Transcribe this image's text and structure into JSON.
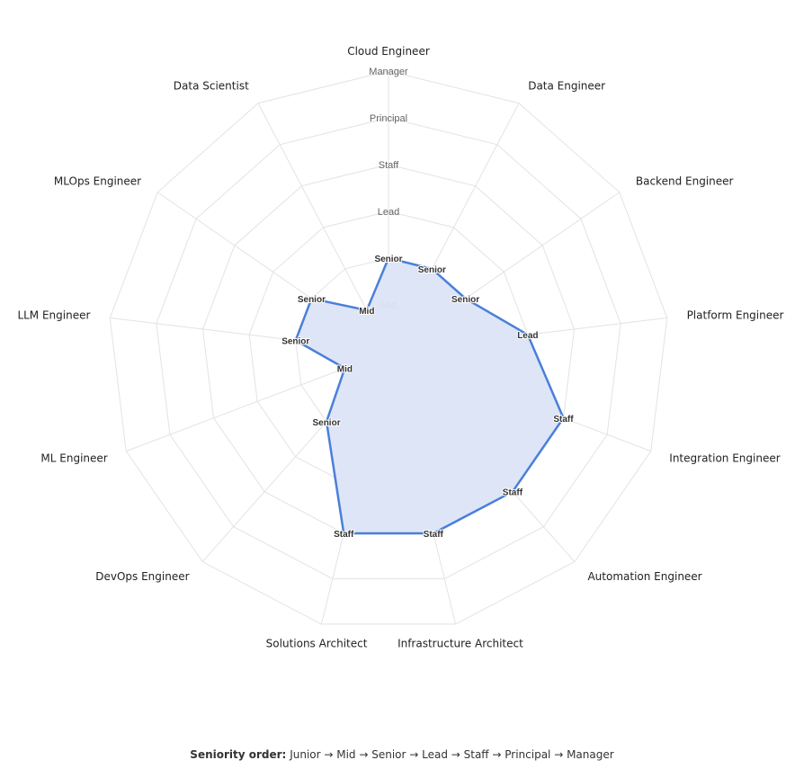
{
  "chart_data": {
    "type": "radar",
    "levels": [
      "Junior",
      "Mid",
      "Senior",
      "Lead",
      "Staff",
      "Principal",
      "Manager"
    ],
    "ring_labels": [
      "Mid",
      "Lead",
      "Staff",
      "Principal",
      "Manager"
    ],
    "axes": [
      "Cloud Engineer",
      "Data Engineer",
      "Backend Engineer",
      "Platform Engineer",
      "Integration Engineer",
      "Automation Engineer",
      "Infrastructure Architect",
      "Solutions Architect",
      "DevOps Engineer",
      "ML Engineer",
      "LLM Engineer",
      "MLOps Engineer",
      "Data Scientist"
    ],
    "series": [
      {
        "values": [
          "Senior",
          "Senior",
          "Senior",
          "Lead",
          "Staff",
          "Staff",
          "Staff",
          "Staff",
          "Senior",
          "Mid",
          "Senior",
          "Senior",
          "Mid"
        ]
      }
    ],
    "colors": {
      "line": "#4a7fd9",
      "fill": "#dbe4f7",
      "grid": "#e3e3e3"
    }
  },
  "footnote": {
    "label": "Seniority order:",
    "text": "Junior → Mid → Senior → Lead → Staff → Principal → Manager"
  }
}
